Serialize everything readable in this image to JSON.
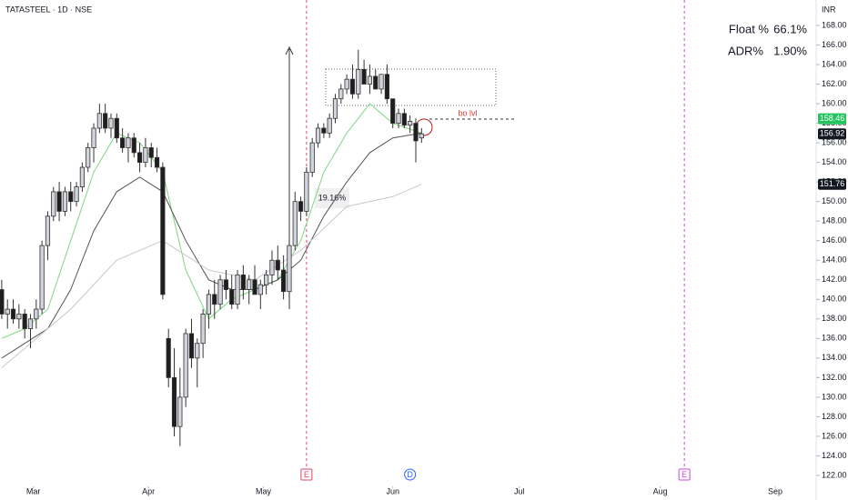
{
  "chart_data": {
    "type": "candlestick",
    "title": "TATASTEEL · 1D · NSE",
    "currency": "INR",
    "stats": [
      {
        "label": "Float %",
        "value": "66.1%"
      },
      {
        "label": "ADR%",
        "value": "1.90%"
      }
    ],
    "x": [
      0,
      1,
      2,
      3,
      4,
      5,
      6,
      7,
      8,
      9,
      10,
      11,
      12,
      13,
      14,
      15,
      16,
      17,
      18,
      19,
      20,
      21,
      22,
      23,
      24,
      25,
      26,
      27,
      28,
      29,
      30,
      31,
      32,
      33,
      34,
      35,
      36,
      37,
      38,
      39,
      40,
      41,
      42,
      43,
      44,
      45,
      46,
      47,
      48,
      49,
      50,
      51,
      52,
      53,
      54,
      55,
      56,
      57,
      58,
      59,
      60,
      61,
      62,
      63,
      64,
      65,
      66,
      67,
      68,
      69,
      70,
      71,
      72,
      73
    ],
    "open": [
      141,
      138.5,
      139,
      138,
      138.5,
      137,
      138,
      139,
      145.5,
      148.5,
      151,
      149,
      151,
      150,
      151.5,
      153.5,
      155.5,
      157.5,
      159,
      157.5,
      158.5,
      156.5,
      155.5,
      156.5,
      155,
      154,
      155.5,
      154.5,
      153.5,
      136,
      132,
      127,
      130,
      136.5,
      134,
      135.5,
      138.5,
      140.5,
      139.5,
      142,
      141,
      139.5,
      142.5,
      141,
      142,
      140.5,
      141.5,
      142.5,
      144,
      143,
      140.8,
      145.5,
      150,
      149,
      153,
      156,
      157.5,
      157,
      158.5,
      160.5,
      161.5,
      162.5,
      161,
      163.5,
      162,
      162.8,
      161.5,
      163,
      160.5,
      158,
      159,
      157.8,
      158,
      156.5
    ],
    "high": [
      142,
      140,
      140,
      139.5,
      139,
      138.5,
      140,
      146,
      149,
      151.5,
      152,
      151.5,
      152,
      152,
      154,
      156,
      158,
      160,
      160,
      159,
      159,
      157.5,
      157,
      157,
      156,
      156.5,
      156,
      155.5,
      154,
      137,
      135,
      133,
      137,
      138,
      136,
      139,
      141,
      142,
      142.5,
      143,
      142.5,
      143,
      143.5,
      142.5,
      143.5,
      142,
      143,
      145,
      145.5,
      144.5,
      146,
      151,
      150.5,
      153.5,
      156.5,
      158,
      158,
      159,
      161,
      162,
      163,
      164,
      165.5,
      164.5,
      164,
      163.5,
      163,
      164,
      160.5,
      159.5,
      159.5,
      158.8,
      158.5,
      157.5
    ],
    "low": [
      138,
      137,
      137.5,
      137,
      136,
      135,
      137,
      138.5,
      144,
      148,
      148,
      148.5,
      149,
      149.5,
      151,
      153,
      154,
      157,
      157,
      156.5,
      156,
      155,
      154,
      154.5,
      153,
      153.5,
      153.5,
      153,
      140,
      131,
      126,
      125,
      129,
      133,
      131,
      134,
      137,
      138,
      139,
      140,
      139,
      139,
      140,
      139.5,
      140.5,
      139,
      140.5,
      141.5,
      142,
      140,
      140.2,
      145,
      148,
      148.5,
      152.5,
      155.5,
      156.5,
      156.5,
      158,
      160,
      161,
      160.5,
      160.5,
      162,
      161,
      161.5,
      161,
      160,
      157.5,
      157.5,
      157.5,
      157,
      154,
      156
    ],
    "close": [
      138.5,
      139,
      138,
      138.5,
      137,
      138,
      139,
      145.5,
      148.5,
      151,
      149,
      151,
      150,
      151.5,
      153.5,
      155.5,
      157.5,
      159,
      157.5,
      158.5,
      156.5,
      155.5,
      156.5,
      155,
      154,
      155.5,
      154.5,
      153.5,
      140.5,
      132,
      127,
      130,
      136.5,
      134,
      135.5,
      138.5,
      140.5,
      139.5,
      142,
      141,
      139.5,
      142.5,
      141,
      142,
      140.5,
      141.5,
      142.5,
      144,
      143,
      140.8,
      145.5,
      150,
      149,
      153,
      156,
      157.5,
      157,
      158.5,
      160.5,
      161.5,
      162.5,
      161,
      163.5,
      162,
      162.8,
      161.5,
      163,
      160.5,
      158,
      159,
      157.8,
      158.2,
      156.2,
      156.92
    ],
    "up_color": "#d1d4dc",
    "down_color": "#1e1e1e",
    "lines": [
      {
        "color": "#7ed67e",
        "x": [
          0,
          4,
          8,
          12,
          16,
          20,
          24,
          28,
          32,
          36,
          40,
          44,
          48,
          52,
          56,
          60,
          64,
          68,
          73
        ],
        "values": [
          136,
          137,
          139,
          146,
          153,
          157,
          156,
          153,
          143,
          138,
          140,
          141,
          142,
          146,
          153,
          157,
          160,
          158,
          157
        ]
      },
      {
        "color": "#555555",
        "x": [
          0,
          4,
          8,
          12,
          16,
          20,
          24,
          28,
          32,
          36,
          40,
          44,
          48,
          52,
          56,
          60,
          64,
          68,
          73
        ],
        "values": [
          134,
          135.5,
          137,
          141,
          147,
          151,
          152.5,
          151,
          146,
          142,
          141,
          141,
          142,
          144,
          148.5,
          152,
          155,
          156.5,
          157
        ]
      },
      {
        "color": "#c8c8c8",
        "x": [
          0,
          4,
          12,
          20,
          28,
          36,
          44,
          52,
          60,
          68,
          73
        ],
        "values": [
          133,
          135,
          139,
          144,
          146,
          143,
          142,
          145,
          149.5,
          150.5,
          151.76
        ]
      }
    ],
    "price_labels": [
      {
        "value": 158.46,
        "color": "#22c55e"
      },
      {
        "value": 156.92,
        "color": "#131722"
      },
      {
        "value": 151.76,
        "color": "#131722"
      }
    ],
    "events": [
      {
        "x": 53,
        "label": "E",
        "color": "#e0466b"
      },
      {
        "x": 71,
        "label": "D",
        "color": "#2962ff"
      },
      {
        "x": 118.7,
        "label": "E",
        "color": "#d048d8"
      }
    ],
    "annotations": {
      "move": "19.16%",
      "level": "bo lvl"
    },
    "xlim": [
      -0.3,
      141.3
    ],
    "xticks": [
      {
        "value": 5.5,
        "label": "Mar"
      },
      {
        "value": 25.5,
        "label": "Apr"
      },
      {
        "value": 45.5,
        "label": "May"
      },
      {
        "value": 68,
        "label": "Jun"
      },
      {
        "value": 90,
        "label": "Jul"
      },
      {
        "value": 114.5,
        "label": "Aug"
      },
      {
        "value": 134.5,
        "label": "Sep"
      }
    ],
    "ylim": [
      121.07,
      170.6
    ],
    "yticks": [
      {
        "value": 122,
        "label": "122.00"
      },
      {
        "value": 124,
        "label": "124.00"
      },
      {
        "value": 126,
        "label": "126.00"
      },
      {
        "value": 128,
        "label": "128.00"
      },
      {
        "value": 130,
        "label": "130.00"
      },
      {
        "value": 132,
        "label": "132.00"
      },
      {
        "value": 134,
        "label": "134.00"
      },
      {
        "value": 136,
        "label": "136.00"
      },
      {
        "value": 138,
        "label": "138.00"
      },
      {
        "value": 140,
        "label": "140.00"
      },
      {
        "value": 142,
        "label": "142.00"
      },
      {
        "value": 144,
        "label": "144.00"
      },
      {
        "value": 146,
        "label": "146.00"
      },
      {
        "value": 148,
        "label": "148.00"
      },
      {
        "value": 150,
        "label": "150.00"
      },
      {
        "value": 152,
        "label": "152.00"
      },
      {
        "value": 154,
        "label": "154.00"
      },
      {
        "value": 156,
        "label": "156.00"
      },
      {
        "value": 158,
        "label": "158.00"
      },
      {
        "value": 160,
        "label": "160.00"
      },
      {
        "value": 162,
        "label": "162.00"
      },
      {
        "value": 164,
        "label": "164.00"
      },
      {
        "value": 166,
        "label": "166.00"
      },
      {
        "value": 168,
        "label": "168.00"
      }
    ]
  }
}
